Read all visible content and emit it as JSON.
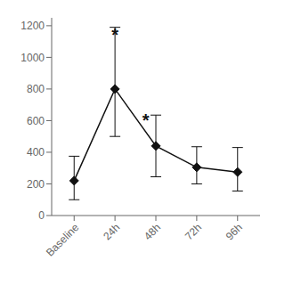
{
  "chart_data": {
    "type": "line",
    "x": [
      0,
      1,
      2,
      3,
      4
    ],
    "xlim": [
      -0.55,
      4.55
    ],
    "xticks": [
      {
        "value": 0,
        "label": "Baseline"
      },
      {
        "value": 1,
        "label": "24h"
      },
      {
        "value": 2,
        "label": "48h"
      },
      {
        "value": 3,
        "label": "72h"
      },
      {
        "value": 4,
        "label": "96h"
      }
    ],
    "ylim": [
      0,
      1250
    ],
    "yticks": [
      0,
      200,
      400,
      600,
      800,
      1000,
      1200
    ],
    "grid": false,
    "series": [
      {
        "values": [
          220,
          800,
          440,
          305,
          275
        ],
        "error_low": [
          120,
          300,
          195,
          105,
          120
        ],
        "error_high": [
          155,
          390,
          195,
          130,
          155
        ],
        "color": "#111111",
        "marker": "diamond"
      }
    ],
    "annotations": [
      {
        "text": "*",
        "x": 1,
        "y": 1200
      },
      {
        "text": "*",
        "x": 1.75,
        "y": 660
      }
    ]
  }
}
